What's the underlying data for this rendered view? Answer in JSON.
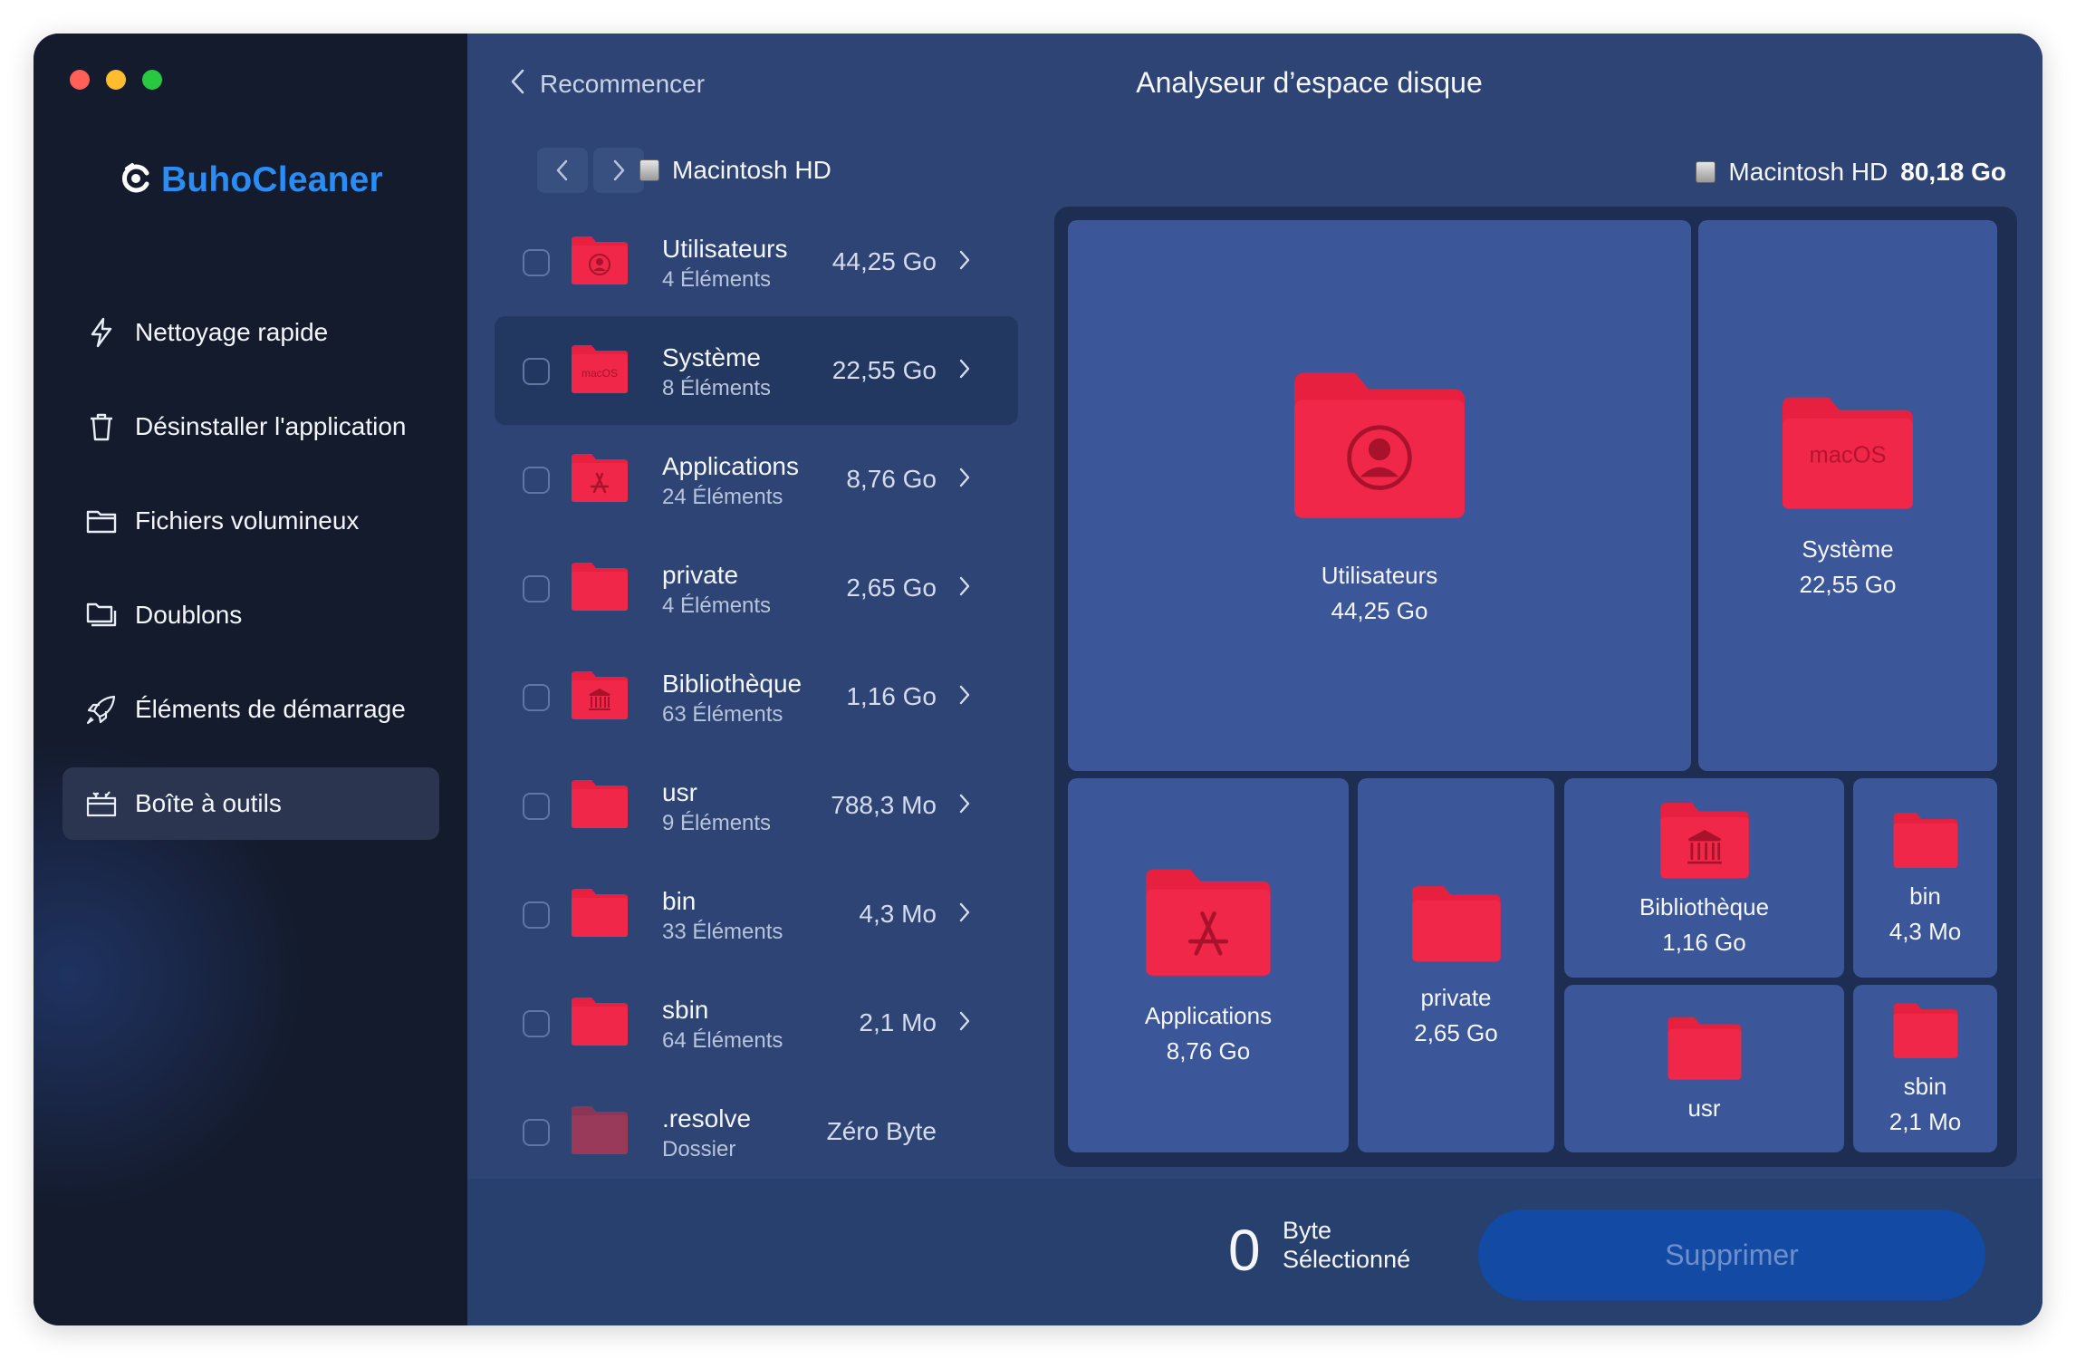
{
  "app": {
    "name": "BuhoCleaner",
    "brand_color": "#2a8cf5"
  },
  "sidebar": {
    "items": [
      {
        "label": "Nettoyage rapide",
        "icon": "lightning-icon"
      },
      {
        "label": "Désinstaller l'application",
        "icon": "trash-icon"
      },
      {
        "label": "Fichiers volumineux",
        "icon": "folder-icon"
      },
      {
        "label": "Doublons",
        "icon": "duplicate-folder-icon"
      },
      {
        "label": "Éléments de démarrage",
        "icon": "rocket-icon"
      },
      {
        "label": "Boîte à outils",
        "icon": "toolbox-icon",
        "active": true
      }
    ]
  },
  "header": {
    "back_label": "Recommencer",
    "title": "Analyseur d’espace disque"
  },
  "breadcrumb": {
    "current": "Macintosh HD"
  },
  "disk": {
    "name": "Macintosh HD",
    "total": "80,18 Go"
  },
  "list": [
    {
      "name": "Utilisateurs",
      "count": "4 Éléments",
      "size": "44,25 Go",
      "glyph": "user"
    },
    {
      "name": "Système",
      "count": "8 Éléments",
      "size": "22,55 Go",
      "glyph": "macos"
    },
    {
      "name": "Applications",
      "count": "24 Éléments",
      "size": "8,76 Go",
      "glyph": "apps"
    },
    {
      "name": "private",
      "count": "4 Éléments",
      "size": "2,65 Go",
      "glyph": ""
    },
    {
      "name": "Bibliothèque",
      "count": "63 Éléments",
      "size": "1,16 Go",
      "glyph": "library"
    },
    {
      "name": "usr",
      "count": "9 Éléments",
      "size": "788,3 Mo",
      "glyph": ""
    },
    {
      "name": "bin",
      "count": "33 Éléments",
      "size": "4,3 Mo",
      "glyph": ""
    },
    {
      "name": "sbin",
      "count": "64 Éléments",
      "size": "2,1 Mo",
      "glyph": ""
    },
    {
      "name": ".resolve",
      "count": "Dossier",
      "size": "Zéro Byte",
      "glyph": ""
    }
  ],
  "treemap": [
    {
      "name": "Utilisateurs",
      "size": "44,25 Go"
    },
    {
      "name": "Système",
      "size": "22,55 Go"
    },
    {
      "name": "Applications",
      "size": "8,76 Go"
    },
    {
      "name": "private",
      "size": "2,65 Go"
    },
    {
      "name": "Bibliothèque",
      "size": "1,16 Go"
    },
    {
      "name": "bin",
      "size": "4,3 Mo"
    },
    {
      "name": "usr",
      "size": ""
    },
    {
      "name": "sbin",
      "size": "2,1 Mo"
    }
  ],
  "footer": {
    "selected_count": "0",
    "selected_unit": "Byte",
    "selected_label": "Sélectionné",
    "delete_label": "Supprimer"
  },
  "colors": {
    "folder_red": "#e8203f",
    "folder_red_dim": "#9a3a5a",
    "sidebar_bg": "#141b2d",
    "main_bg": "#2d4474",
    "tile_bg": "#3b5699"
  },
  "macos_folder_text": "macOS"
}
